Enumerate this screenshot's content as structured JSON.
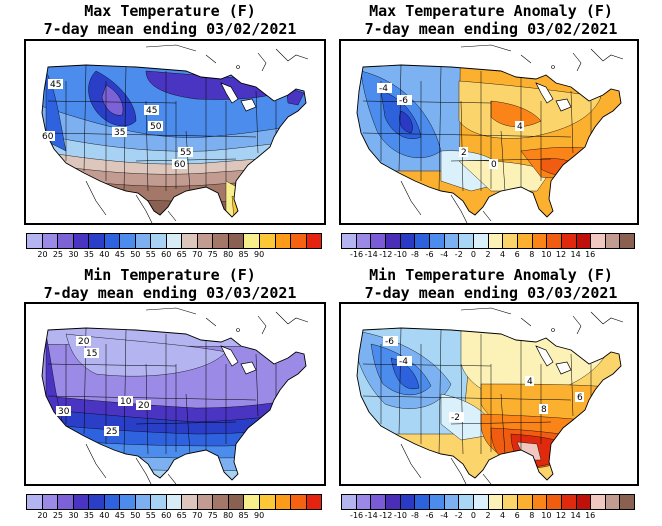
{
  "panels": [
    {
      "title": "Max Temperature (F)",
      "subtitle": "7-day mean ending 03/02/2021",
      "scale": "max",
      "contour_labels": [
        "45",
        "45",
        "35",
        "50",
        "60",
        "55",
        "60"
      ]
    },
    {
      "title": "Max Temperature Anomaly (F)",
      "subtitle": "7-day mean ending 03/02/2021",
      "scale": "anom",
      "contour_labels": [
        "-4",
        "-6",
        "4",
        "2",
        "0"
      ]
    },
    {
      "title": "Min Temperature (F)",
      "subtitle": "7-day mean ending 03/03/2021",
      "scale": "min",
      "contour_labels": [
        "20",
        "15",
        "10",
        "20",
        "30",
        "25"
      ]
    },
    {
      "title": "Min Temperature Anomaly (F)",
      "subtitle": "7-day mean ending 03/03/2021",
      "scale": "anom",
      "contour_labels": [
        "-6",
        "-4",
        "-2",
        "4",
        "6",
        "8"
      ]
    }
  ],
  "scales": {
    "temp": {
      "labels": [
        "20",
        "25",
        "30",
        "35",
        "40",
        "45",
        "50",
        "55",
        "60",
        "65",
        "70",
        "75",
        "80",
        "85",
        "90"
      ],
      "colors": [
        "#b4b4f0",
        "#9b8be6",
        "#7c62d6",
        "#4a34c2",
        "#2a3ec8",
        "#2f62de",
        "#4c8cec",
        "#7cb0f0",
        "#a8d2f4",
        "#d8ecf6",
        "#ddc6bc",
        "#c29c90",
        "#a47868",
        "#8a6050",
        "#f8ee8c",
        "#fcc838",
        "#fc9a1a",
        "#f46212",
        "#e42410"
      ]
    },
    "anom": {
      "labels": [
        "-16",
        "-14",
        "-12",
        "-10",
        "-8",
        "-6",
        "-4",
        "-2",
        "0",
        "2",
        "4",
        "6",
        "8",
        "10",
        "12",
        "14",
        "16"
      ],
      "colors": [
        "#b4b4f0",
        "#9c88e6",
        "#7a5cd6",
        "#4a2eb8",
        "#2a3ac4",
        "#2e62dc",
        "#4c8cec",
        "#7cb2f2",
        "#aad6f6",
        "#daf0fa",
        "#fcf2b8",
        "#fcd46c",
        "#fcb030",
        "#fa8418",
        "#f05c10",
        "#e02a0e",
        "#c0100c",
        "#f0c8c0",
        "#c29c90",
        "#8a6050"
      ]
    }
  }
}
